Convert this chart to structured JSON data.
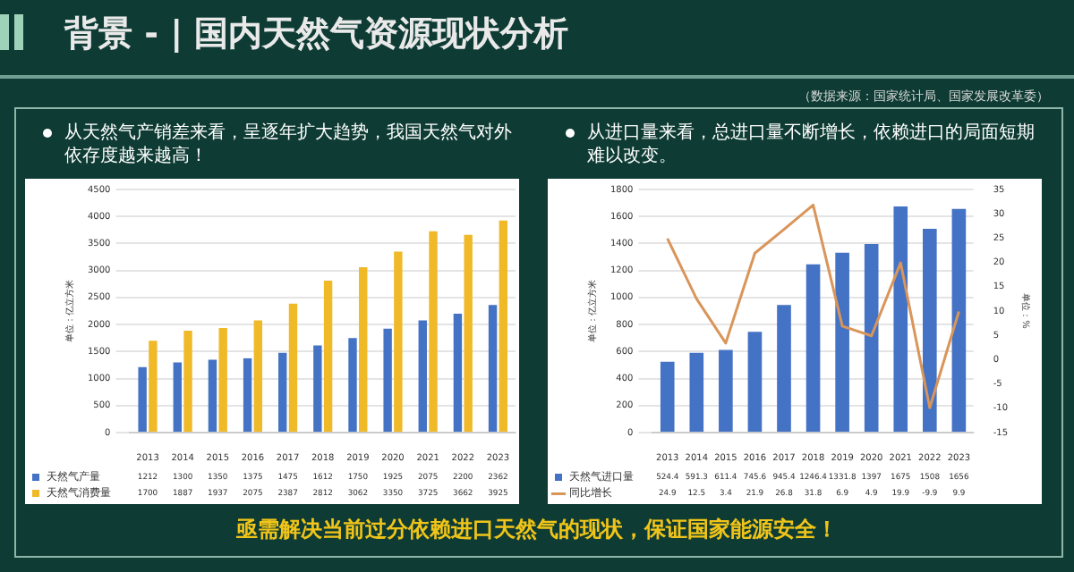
{
  "chart_data": [
    {
      "type": "bar",
      "title": "背景 - | 国内天然气资源现状分析",
      "subtitle": "从天然气产销差来看，呈逐年扩大趋势，我国天然气对外依存度越来越高！",
      "annotations": [
        "（数据来源：国家统计局、国家发展改革委）"
      ],
      "ylabel": "单位：亿立方米",
      "categories": [
        "2013",
        "2014",
        "2015",
        "2016",
        "2017",
        "2018",
        "2019",
        "2020",
        "2021",
        "2022",
        "2023"
      ],
      "series": [
        {
          "name": "天然气产量",
          "color": "#4472c4",
          "values": [
            1212,
            1300,
            1350,
            1375,
            1475,
            1612,
            1750,
            1925,
            2075,
            2200,
            2362
          ]
        },
        {
          "name": "天然气消费量",
          "color": "#f0b927",
          "values": [
            1700,
            1887,
            1937,
            2075,
            2387,
            2812,
            3062,
            3350,
            3725,
            3662,
            3925
          ]
        }
      ],
      "ylim": [
        0,
        4500
      ],
      "yticks": [
        0,
        500,
        1000,
        1500,
        2000,
        2500,
        3000,
        3500,
        4000,
        4500
      ],
      "grid": "y",
      "legend": "bottom",
      "data_labels": true
    },
    {
      "type": "bar",
      "subtitle": "从进口量来看，总进口量不断增长，依赖进口的局面短期难以改变。",
      "annotations": [
        "亟需解决当前过分依赖进口天然气的现状，保证国家能源安全！"
      ],
      "ylabel": "单位：亿立方米",
      "y2label": "单位：%",
      "categories": [
        "2013",
        "2014",
        "2015",
        "2016",
        "2017",
        "2018",
        "2019",
        "2020",
        "2021",
        "2022",
        "2023"
      ],
      "series": [
        {
          "name": "天然气进口量",
          "color": "#4472c4",
          "values": [
            524.4,
            591.3,
            611.4,
            745.6,
            945.4,
            1246.4,
            1331.8,
            1397,
            1675,
            1508,
            1656
          ]
        },
        {
          "name": "同比增长",
          "type": "line",
          "axis": "y2",
          "color": "#d9955a",
          "marker": "none",
          "values": [
            24.9,
            12.5,
            3.4,
            21.9,
            26.8,
            31.8,
            6.9,
            4.9,
            19.9,
            -9.9,
            9.9
          ]
        }
      ],
      "ylim": [
        0,
        1800
      ],
      "yticks": [
        0,
        200,
        400,
        600,
        800,
        1000,
        1200,
        1400,
        1600,
        1800
      ],
      "y2lim": [
        -15,
        35
      ],
      "y2ticks": [
        -15,
        -10,
        -5,
        0,
        5,
        10,
        15,
        20,
        25,
        30,
        35
      ],
      "grid": "y",
      "legend": "bottom",
      "data_labels": true
    }
  ]
}
